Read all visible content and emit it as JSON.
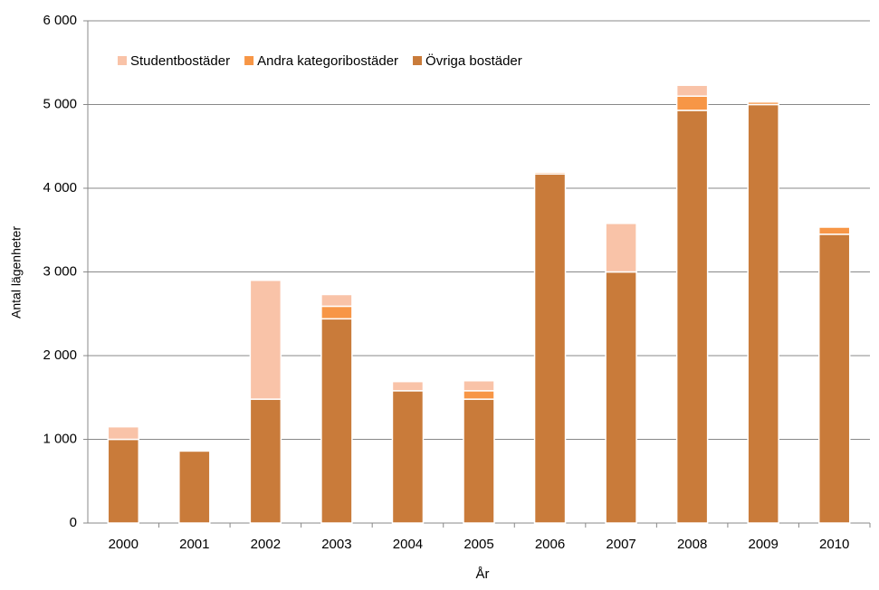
{
  "chart_data": {
    "type": "stacked_bar",
    "x_label": "År",
    "y_label": "Antal lägenheter",
    "categories": [
      "2000",
      "2001",
      "2002",
      "2003",
      "2004",
      "2005",
      "2006",
      "2007",
      "2008",
      "2009",
      "2010"
    ],
    "series": [
      {
        "name": "Övriga bostäder",
        "color": "#c97b3a",
        "values": [
          1000,
          860,
          1480,
          2440,
          1580,
          1480,
          4170,
          3000,
          4930,
          5000,
          3450
        ]
      },
      {
        "name": "Andra kategoribostäder",
        "color": "#f79646",
        "values": [
          0,
          0,
          0,
          150,
          0,
          100,
          20,
          0,
          170,
          30,
          85
        ]
      },
      {
        "name": "Studentbostäder",
        "color": "#f9c3a8",
        "values": [
          150,
          0,
          1420,
          140,
          110,
          120,
          0,
          580,
          130,
          0,
          0
        ]
      }
    ],
    "legend_order": [
      "Studentbostäder",
      "Andra kategoribostäder",
      "Övriga bostäder"
    ],
    "legend": "top-left",
    "ylim": [
      0,
      6000
    ],
    "yticks": [
      0,
      {
        "value": 1000,
        "label": "1 000"
      },
      {
        "value": 2000,
        "label": "2 000"
      },
      {
        "value": 3000,
        "label": "3 000"
      },
      {
        "value": 4000,
        "label": "4 000"
      },
      {
        "value": 5000,
        "label": "5 000"
      },
      {
        "value": 6000,
        "label": "6 000"
      }
    ],
    "grid": true
  }
}
